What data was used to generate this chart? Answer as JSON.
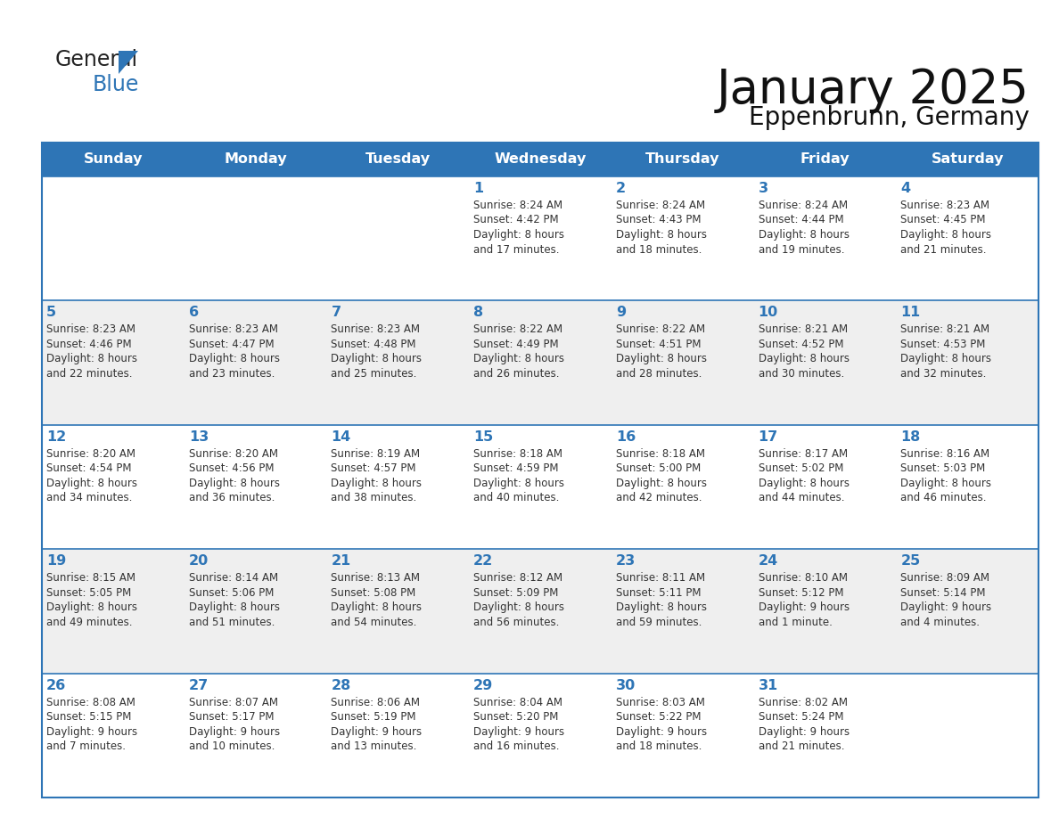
{
  "title": "January 2025",
  "subtitle": "Eppenbrunn, Germany",
  "header_color": "#2E75B6",
  "header_text_color": "#FFFFFF",
  "days_of_week": [
    "Sunday",
    "Monday",
    "Tuesday",
    "Wednesday",
    "Thursday",
    "Friday",
    "Saturday"
  ],
  "cell_bg_color": "#FFFFFF",
  "alt_cell_bg_color": "#EFEFEF",
  "border_color": "#2E75B6",
  "day_number_color": "#2E75B6",
  "text_color": "#333333",
  "calendar_data": [
    [
      {
        "day": "",
        "sunrise": "",
        "sunset": "",
        "daylight": ""
      },
      {
        "day": "",
        "sunrise": "",
        "sunset": "",
        "daylight": ""
      },
      {
        "day": "",
        "sunrise": "",
        "sunset": "",
        "daylight": ""
      },
      {
        "day": "1",
        "sunrise": "8:24 AM",
        "sunset": "4:42 PM",
        "daylight_h": "8 hours",
        "daylight_m": "and 17 minutes."
      },
      {
        "day": "2",
        "sunrise": "8:24 AM",
        "sunset": "4:43 PM",
        "daylight_h": "8 hours",
        "daylight_m": "and 18 minutes."
      },
      {
        "day": "3",
        "sunrise": "8:24 AM",
        "sunset": "4:44 PM",
        "daylight_h": "8 hours",
        "daylight_m": "and 19 minutes."
      },
      {
        "day": "4",
        "sunrise": "8:23 AM",
        "sunset": "4:45 PM",
        "daylight_h": "8 hours",
        "daylight_m": "and 21 minutes."
      }
    ],
    [
      {
        "day": "5",
        "sunrise": "8:23 AM",
        "sunset": "4:46 PM",
        "daylight_h": "8 hours",
        "daylight_m": "and 22 minutes."
      },
      {
        "day": "6",
        "sunrise": "8:23 AM",
        "sunset": "4:47 PM",
        "daylight_h": "8 hours",
        "daylight_m": "and 23 minutes."
      },
      {
        "day": "7",
        "sunrise": "8:23 AM",
        "sunset": "4:48 PM",
        "daylight_h": "8 hours",
        "daylight_m": "and 25 minutes."
      },
      {
        "day": "8",
        "sunrise": "8:22 AM",
        "sunset": "4:49 PM",
        "daylight_h": "8 hours",
        "daylight_m": "and 26 minutes."
      },
      {
        "day": "9",
        "sunrise": "8:22 AM",
        "sunset": "4:51 PM",
        "daylight_h": "8 hours",
        "daylight_m": "and 28 minutes."
      },
      {
        "day": "10",
        "sunrise": "8:21 AM",
        "sunset": "4:52 PM",
        "daylight_h": "8 hours",
        "daylight_m": "and 30 minutes."
      },
      {
        "day": "11",
        "sunrise": "8:21 AM",
        "sunset": "4:53 PM",
        "daylight_h": "8 hours",
        "daylight_m": "and 32 minutes."
      }
    ],
    [
      {
        "day": "12",
        "sunrise": "8:20 AM",
        "sunset": "4:54 PM",
        "daylight_h": "8 hours",
        "daylight_m": "and 34 minutes."
      },
      {
        "day": "13",
        "sunrise": "8:20 AM",
        "sunset": "4:56 PM",
        "daylight_h": "8 hours",
        "daylight_m": "and 36 minutes."
      },
      {
        "day": "14",
        "sunrise": "8:19 AM",
        "sunset": "4:57 PM",
        "daylight_h": "8 hours",
        "daylight_m": "and 38 minutes."
      },
      {
        "day": "15",
        "sunrise": "8:18 AM",
        "sunset": "4:59 PM",
        "daylight_h": "8 hours",
        "daylight_m": "and 40 minutes."
      },
      {
        "day": "16",
        "sunrise": "8:18 AM",
        "sunset": "5:00 PM",
        "daylight_h": "8 hours",
        "daylight_m": "and 42 minutes."
      },
      {
        "day": "17",
        "sunrise": "8:17 AM",
        "sunset": "5:02 PM",
        "daylight_h": "8 hours",
        "daylight_m": "and 44 minutes."
      },
      {
        "day": "18",
        "sunrise": "8:16 AM",
        "sunset": "5:03 PM",
        "daylight_h": "8 hours",
        "daylight_m": "and 46 minutes."
      }
    ],
    [
      {
        "day": "19",
        "sunrise": "8:15 AM",
        "sunset": "5:05 PM",
        "daylight_h": "8 hours",
        "daylight_m": "and 49 minutes."
      },
      {
        "day": "20",
        "sunrise": "8:14 AM",
        "sunset": "5:06 PM",
        "daylight_h": "8 hours",
        "daylight_m": "and 51 minutes."
      },
      {
        "day": "21",
        "sunrise": "8:13 AM",
        "sunset": "5:08 PM",
        "daylight_h": "8 hours",
        "daylight_m": "and 54 minutes."
      },
      {
        "day": "22",
        "sunrise": "8:12 AM",
        "sunset": "5:09 PM",
        "daylight_h": "8 hours",
        "daylight_m": "and 56 minutes."
      },
      {
        "day": "23",
        "sunrise": "8:11 AM",
        "sunset": "5:11 PM",
        "daylight_h": "8 hours",
        "daylight_m": "and 59 minutes."
      },
      {
        "day": "24",
        "sunrise": "8:10 AM",
        "sunset": "5:12 PM",
        "daylight_h": "9 hours",
        "daylight_m": "and 1 minute."
      },
      {
        "day": "25",
        "sunrise": "8:09 AM",
        "sunset": "5:14 PM",
        "daylight_h": "9 hours",
        "daylight_m": "and 4 minutes."
      }
    ],
    [
      {
        "day": "26",
        "sunrise": "8:08 AM",
        "sunset": "5:15 PM",
        "daylight_h": "9 hours",
        "daylight_m": "and 7 minutes."
      },
      {
        "day": "27",
        "sunrise": "8:07 AM",
        "sunset": "5:17 PM",
        "daylight_h": "9 hours",
        "daylight_m": "and 10 minutes."
      },
      {
        "day": "28",
        "sunrise": "8:06 AM",
        "sunset": "5:19 PM",
        "daylight_h": "9 hours",
        "daylight_m": "and 13 minutes."
      },
      {
        "day": "29",
        "sunrise": "8:04 AM",
        "sunset": "5:20 PM",
        "daylight_h": "9 hours",
        "daylight_m": "and 16 minutes."
      },
      {
        "day": "30",
        "sunrise": "8:03 AM",
        "sunset": "5:22 PM",
        "daylight_h": "9 hours",
        "daylight_m": "and 18 minutes."
      },
      {
        "day": "31",
        "sunrise": "8:02 AM",
        "sunset": "5:24 PM",
        "daylight_h": "9 hours",
        "daylight_m": "and 21 minutes."
      },
      {
        "day": "",
        "sunrise": "",
        "sunset": "",
        "daylight_h": "",
        "daylight_m": ""
      }
    ]
  ]
}
